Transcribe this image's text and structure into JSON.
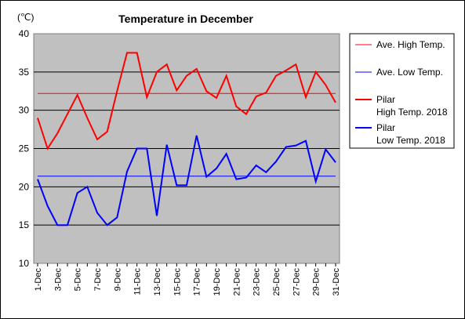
{
  "chart_data": {
    "type": "line",
    "title": "Temperature in December",
    "unit_label": "(℃)",
    "ylim": [
      10,
      40
    ],
    "yticks": [
      "10",
      "15",
      "20",
      "25",
      "30",
      "35",
      "40"
    ],
    "grid": true,
    "legend_position": "right",
    "categories": [
      "1-Dec",
      "2-Dec",
      "3-Dec",
      "4-Dec",
      "5-Dec",
      "6-Dec",
      "7-Dec",
      "8-Dec",
      "9-Dec",
      "10-Dec",
      "11-Dec",
      "12-Dec",
      "13-Dec",
      "14-Dec",
      "15-Dec",
      "16-Dec",
      "17-Dec",
      "18-Dec",
      "19-Dec",
      "20-Dec",
      "21-Dec",
      "22-Dec",
      "23-Dec",
      "24-Dec",
      "25-Dec",
      "26-Dec",
      "27-Dec",
      "28-Dec",
      "29-Dec",
      "30-Dec",
      "31-Dec"
    ],
    "x_tick_labels": [
      "1-Dec",
      "3-Dec",
      "5-Dec",
      "7-Dec",
      "9-Dec",
      "11-Dec",
      "13-Dec",
      "15-Dec",
      "17-Dec",
      "19-Dec",
      "21-Dec",
      "23-Dec",
      "25-Dec",
      "27-Dec",
      "29-Dec",
      "31-Dec"
    ],
    "series": [
      {
        "name": "Ave. High Temp.",
        "label_lines": [
          "Ave. High Temp."
        ],
        "color": "#ff0000",
        "style": "thin",
        "values": [
          32.2,
          32.2,
          32.2,
          32.2,
          32.2,
          32.2,
          32.2,
          32.2,
          32.2,
          32.2,
          32.2,
          32.2,
          32.2,
          32.2,
          32.2,
          32.2,
          32.2,
          32.2,
          32.2,
          32.2,
          32.2,
          32.2,
          32.2,
          32.2,
          32.2,
          32.2,
          32.2,
          32.2,
          32.2,
          32.2,
          32.2
        ]
      },
      {
        "name": "Ave. Low Temp.",
        "label_lines": [
          "Ave. Low Temp."
        ],
        "color": "#0000ff",
        "style": "thin",
        "values": [
          21.4,
          21.4,
          21.4,
          21.4,
          21.4,
          21.4,
          21.4,
          21.4,
          21.4,
          21.4,
          21.4,
          21.4,
          21.4,
          21.4,
          21.4,
          21.4,
          21.4,
          21.4,
          21.4,
          21.4,
          21.4,
          21.4,
          21.4,
          21.4,
          21.4,
          21.4,
          21.4,
          21.4,
          21.4,
          21.4,
          21.4
        ]
      },
      {
        "name": "Pilar High Temp. 2018",
        "label_lines": [
          "Pilar",
          "High Temp. 2018"
        ],
        "color": "#ff0000",
        "style": "thick",
        "values": [
          29,
          25,
          27,
          29.5,
          32,
          29,
          26.2,
          27.2,
          32.5,
          37.5,
          37.5,
          31.7,
          35,
          36,
          32.6,
          34.5,
          35.4,
          32.5,
          31.6,
          34.5,
          30.5,
          29.5,
          31.8,
          32.3,
          34.5,
          35.2,
          36,
          31.7,
          35,
          33.3,
          31
        ]
      },
      {
        "name": "Pilar Low Temp. 2018",
        "label_lines": [
          "Pilar",
          "Low Temp. 2018"
        ],
        "color": "#0000ff",
        "style": "thick",
        "values": [
          21,
          17.5,
          15,
          15,
          19.2,
          20,
          16.6,
          15,
          16,
          22,
          25,
          25,
          16.2,
          25.5,
          20.2,
          20.2,
          26.7,
          21.3,
          22.4,
          24.3,
          21,
          21.2,
          22.8,
          21.9,
          23.3,
          25.2,
          25.4,
          26,
          20.7,
          24.9,
          23.2
        ]
      }
    ]
  }
}
